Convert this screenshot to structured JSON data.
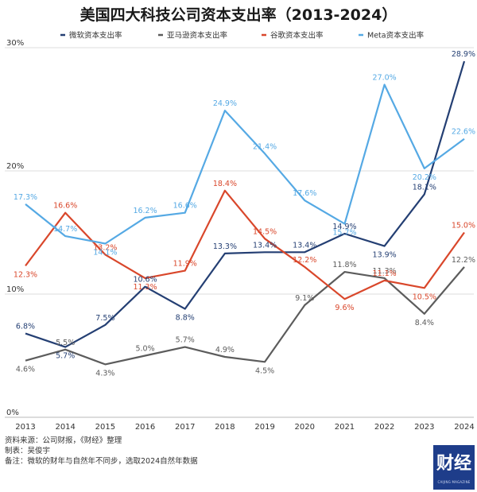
{
  "chart_data": {
    "type": "line",
    "title": "美国四大科技公司资本支出率（2013-2024）",
    "x": [
      "2013",
      "2014",
      "2015",
      "2016",
      "2017",
      "2018",
      "2019",
      "2020",
      "2021",
      "2022",
      "2023",
      "2024"
    ],
    "ylim": [
      0,
      30
    ],
    "yticks": [
      "0%",
      "10%",
      "20%",
      "30%"
    ],
    "grid": "horizontal",
    "legend": "top",
    "series": [
      {
        "name": "微软资本支出率",
        "color": "#243f73",
        "values": [
          6.8,
          5.7,
          7.5,
          10.6,
          8.8,
          13.3,
          13.4,
          13.4,
          14.9,
          13.9,
          18.1,
          28.9
        ],
        "labels": [
          "6.8%",
          "5.7%",
          "7.5%",
          "10.6%",
          "8.8%",
          "13.3%",
          "13.4%",
          "13.4%",
          "14.9%",
          "13.9%",
          "18.1%",
          "28.9%"
        ]
      },
      {
        "name": "亚马逊资本支出率",
        "color": "#5c5c5c",
        "values": [
          4.6,
          5.5,
          4.3,
          5.0,
          5.7,
          4.9,
          4.5,
          9.1,
          11.8,
          11.3,
          8.4,
          12.2
        ],
        "labels": [
          "4.6%",
          "5.5%",
          "4.3%",
          "5.0%",
          "5.7%",
          "4.9%",
          "4.5%",
          "9.1%",
          "11.8%",
          "11.3%",
          "8.4%",
          "12.2%"
        ]
      },
      {
        "name": "谷歌资本支出率",
        "color": "#d9472b",
        "values": [
          12.3,
          16.6,
          13.2,
          11.3,
          11.9,
          18.4,
          14.5,
          12.2,
          9.6,
          11.1,
          10.5,
          15.0
        ],
        "labels": [
          "12.3%",
          "16.6%",
          "13.2%",
          "11.3%",
          "11.9%",
          "18.4%",
          "14.5%",
          "12.2%",
          "9.6%",
          "11.1%",
          "10.5%",
          "15.0%"
        ]
      },
      {
        "name": "Meta资本支出率",
        "color": "#55a9e4",
        "values": [
          17.3,
          14.7,
          14.1,
          16.2,
          16.6,
          24.9,
          21.4,
          17.6,
          15.7,
          27.0,
          20.2,
          22.6
        ],
        "labels": [
          "17.3%",
          "14.7%",
          "14.1%",
          "16.2%",
          "16.6%",
          "24.9%",
          "21.4%",
          "17.6%",
          "15.7%",
          "27.0%",
          "20.2%",
          "22.6%"
        ]
      }
    ]
  },
  "footer": {
    "source": "资料来源：公司财报，《财经》整理",
    "maker": "制表：吴俊宇",
    "note": "备注：微软的财年与自然年不同步，选取2024自然年数据"
  },
  "logo": {
    "text": "财经",
    "sub": "CAIJING MAGAZINE"
  }
}
